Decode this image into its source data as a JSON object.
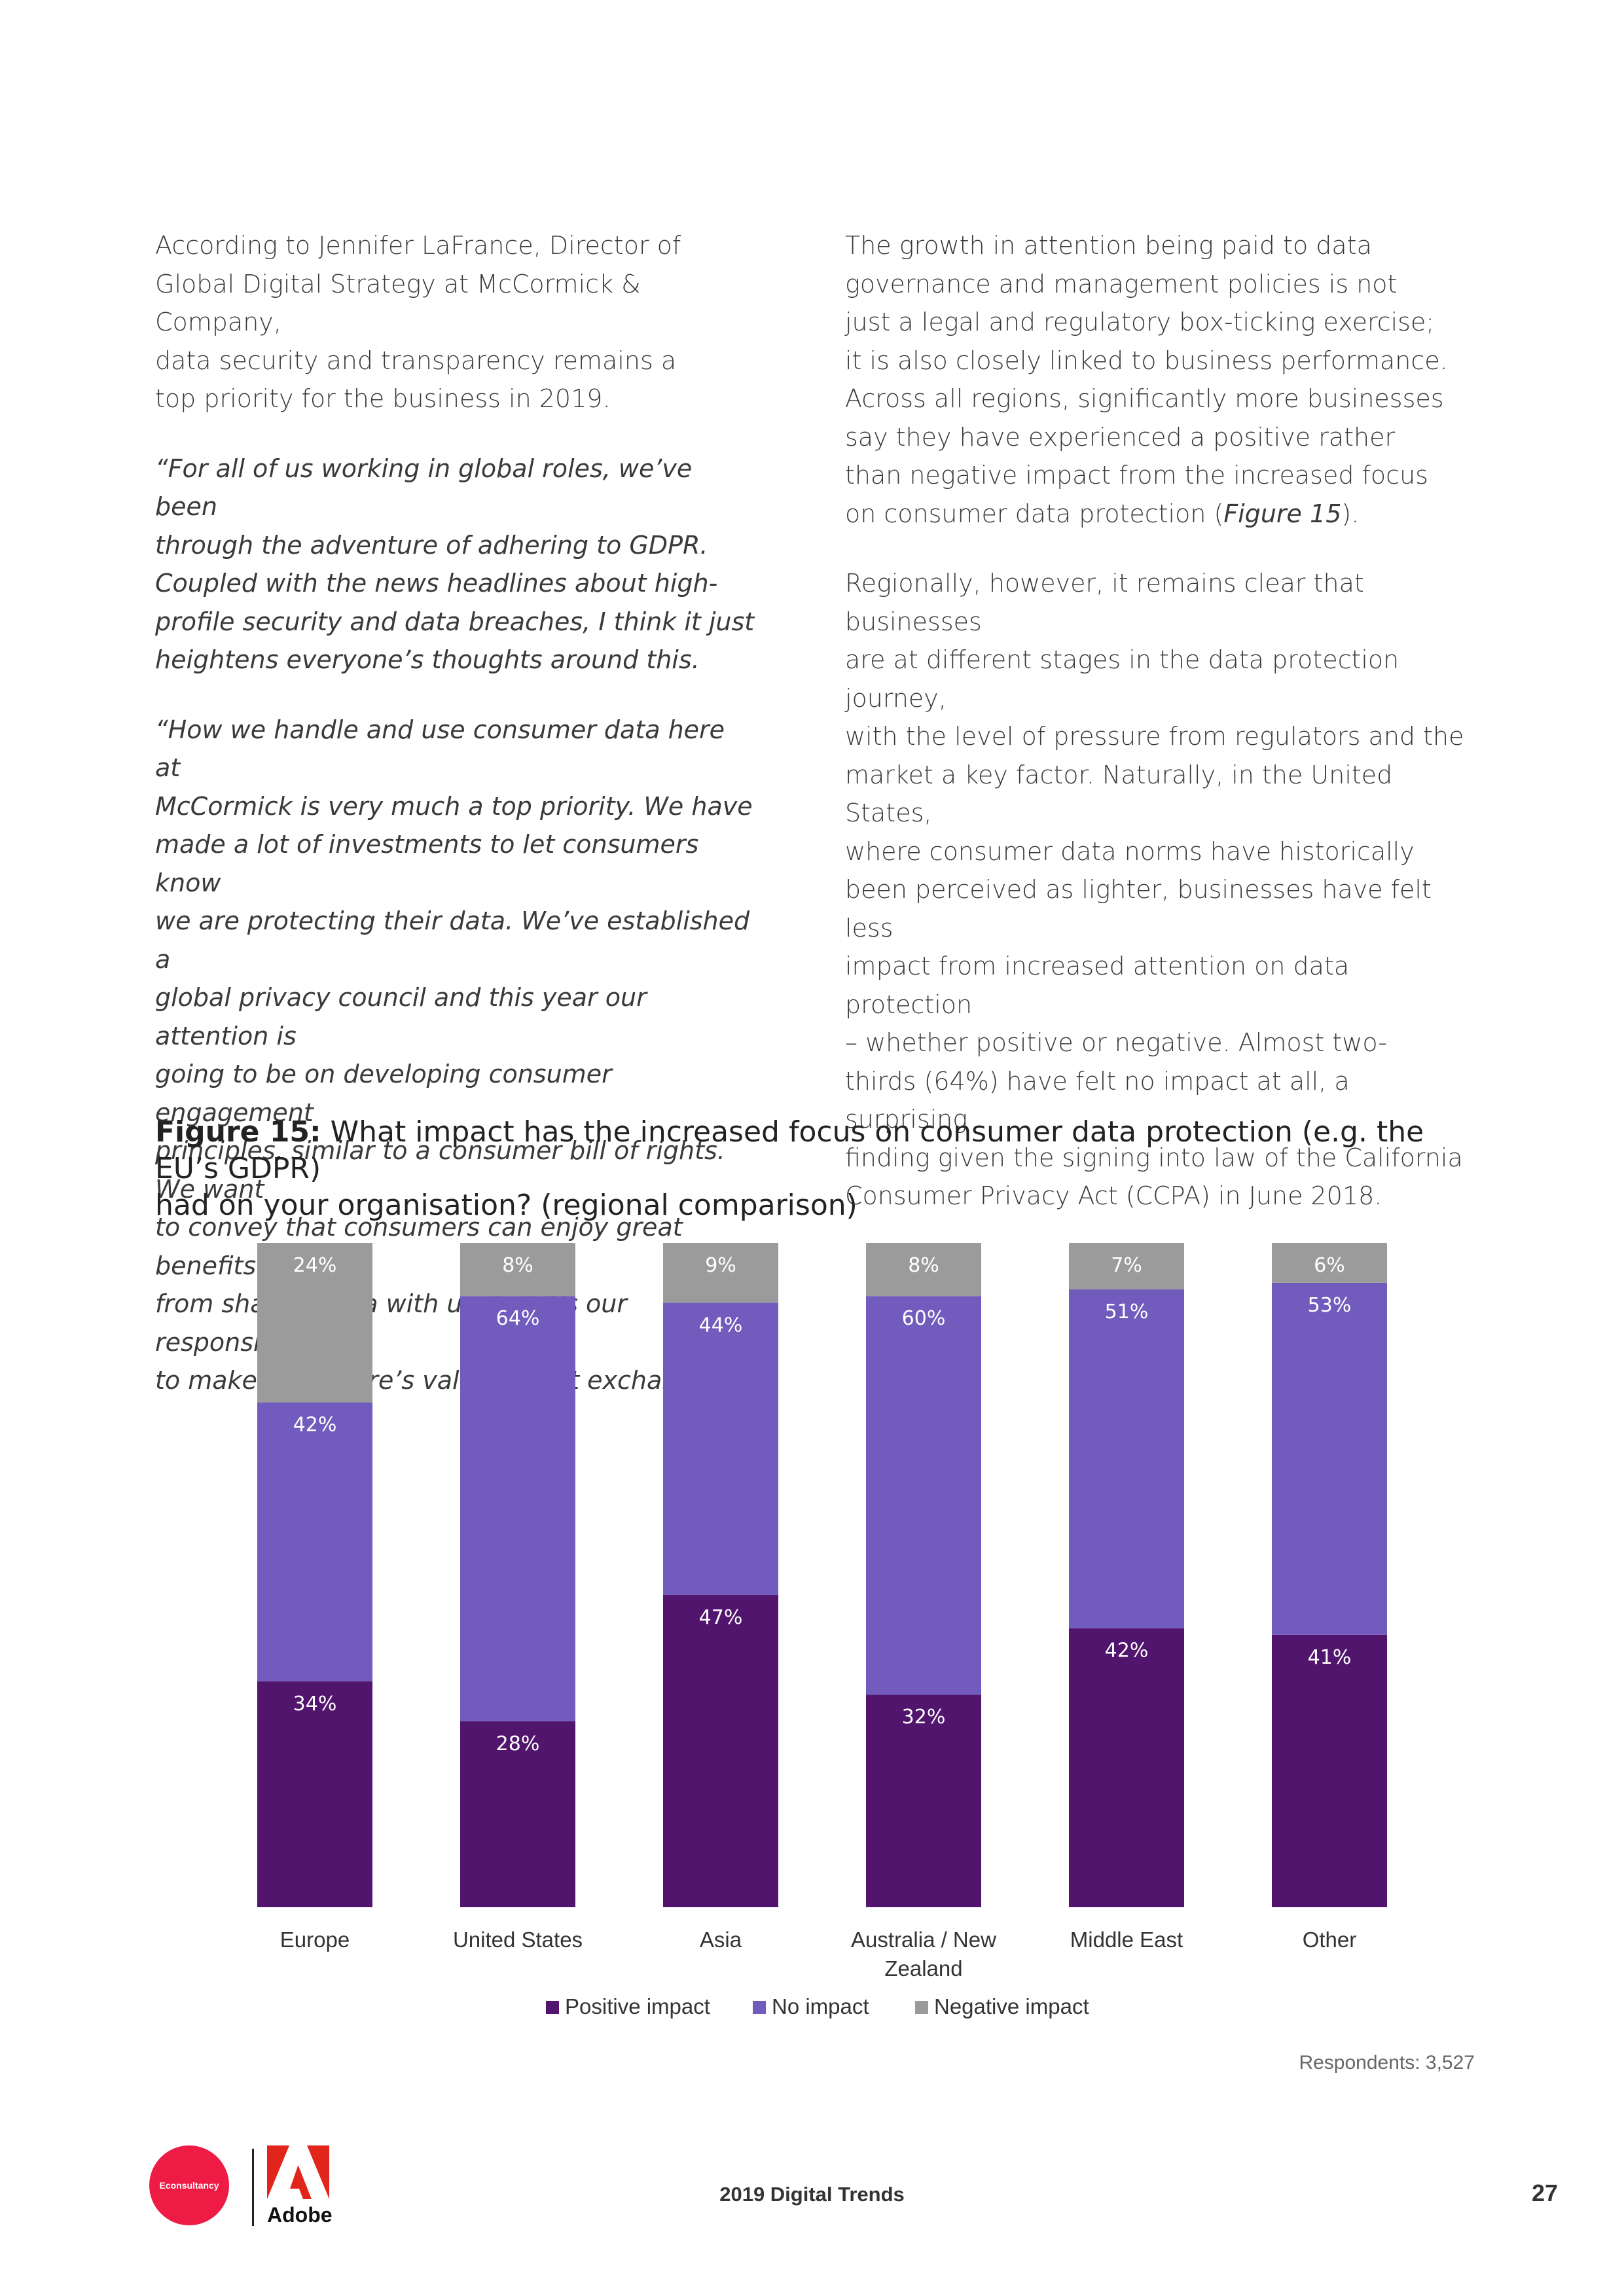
{
  "left_column": [
    {
      "text": "According to Jennifer LaFrance, Director of\nGlobal Digital Strategy at McCormick & Company,\ndata security and transparency remains a\ntop priority for the business in 2019."
    },
    {
      "text": "“For all of us working in global roles, we’ve been\nthrough the adventure of adhering to GDPR.\nCoupled with the news headlines about high-\nprofile security and data breaches, I think it just\nheightens everyone’s thoughts around this."
    },
    {
      "text": "“How we handle and use consumer data here at\nMcCormick is very much a top priority. We have\nmade a lot of investments to let consumers know\nwe are protecting their data. We’ve established a\nglobal privacy council and this year our attention is\ngoing to be on developing consumer engagement\nprinciples, similar to a consumer bill of rights. We want\nto convey that consumers can enjoy great benefits\nfrom sharing data with us, but it’s our responsibility\nto make sure there’s value in that exchange.”"
    }
  ],
  "right_column": [
    {
      "text": "The growth in attention being paid to data\ngovernance and management policies is not\njust a legal and regulatory box-ticking exercise;\nit is also closely linked to business performance.\nAcross all regions, significantly more businesses\nsay they have experienced a positive rather\nthan negative impact from the increased focus\non consumer data protection (",
      "ref": "Figure 15",
      "after": ")."
    },
    {
      "text": "Regionally, however, it remains clear that businesses\nare at different stages in the data protection journey,\nwith the level of pressure from regulators and the\nmarket a key factor. Naturally, in the United States,\nwhere consumer data norms have historically\nbeen perceived as lighter, businesses have felt less\nimpact from increased attention on data protection\n– whether positive or negative. Almost two-\nthirds (64%) have felt no impact at all, a surprising\nfinding given the signing into law of the California\nConsumer Privacy Act (CCPA) in June 2018."
    }
  ],
  "figure": {
    "label": "Figure 15:",
    "title": " What impact has the increased focus on consumer data protection (e.g. the EU’s GDPR)\nhad on your organisation? (regional comparison)"
  },
  "chart_data": {
    "type": "bar",
    "stacked": true,
    "categories": [
      "Europe",
      "United States",
      "Asia",
      "Australia / New Zealand",
      "Middle East",
      "Other"
    ],
    "series": [
      {
        "name": "Positive impact",
        "values": [
          34,
          28,
          47,
          32,
          42,
          41
        ],
        "labels": [
          "34%",
          "28%",
          "47%",
          "32%",
          "42%",
          "41%"
        ],
        "color": "#52156e"
      },
      {
        "name": "No impact",
        "values": [
          42,
          64,
          44,
          60,
          51,
          53
        ],
        "labels": [
          "42%",
          "64%",
          "44%",
          "60%",
          "51%",
          "53%"
        ],
        "color": "#715bbd"
      },
      {
        "name": "Negative impact",
        "values": [
          24,
          8,
          9,
          8,
          7,
          6
        ],
        "labels": [
          "24%",
          "8%",
          "9%",
          "8%",
          "7%",
          "6%"
        ],
        "color": "#9b9b9b"
      }
    ],
    "ylim": [
      0,
      100
    ],
    "grid": false,
    "legend_position": "bottom"
  },
  "respondents": "Respondents: 3,527",
  "footer": {
    "econsultancy_logo": "Econsultancy",
    "adobe_logo": "Adobe",
    "title": "2019 Digital Trends",
    "page_number": "27"
  }
}
